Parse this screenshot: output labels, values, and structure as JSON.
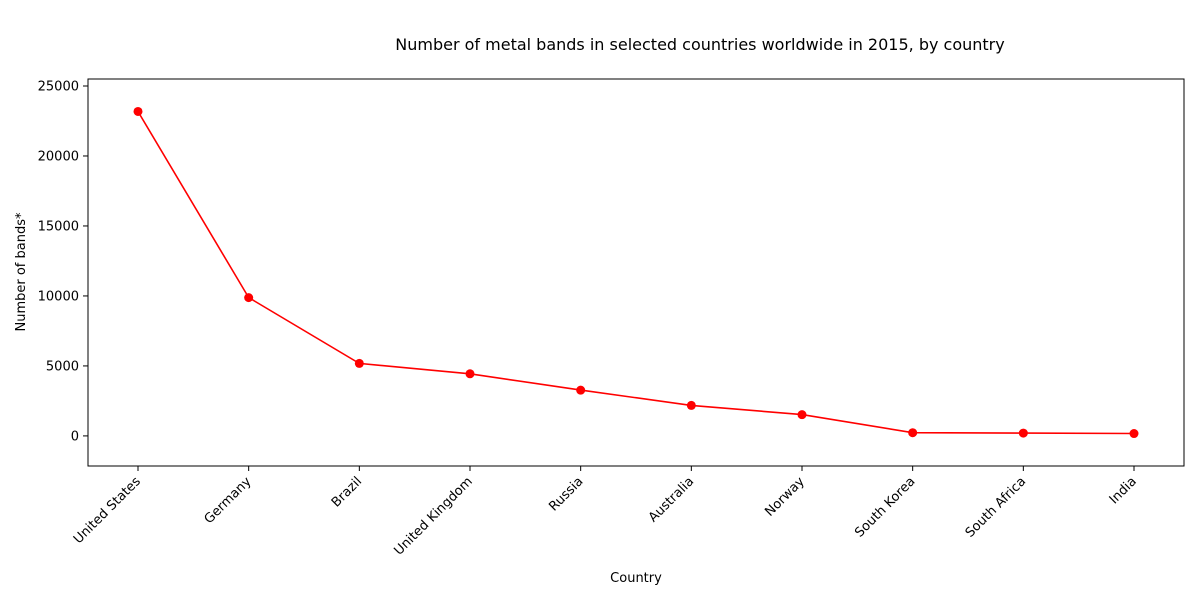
{
  "chart_data": {
    "type": "line",
    "title": "Number of metal bands in selected countries worldwide in 2015, by country",
    "xlabel": "Country",
    "ylabel": "Number of bands*",
    "categories": [
      "United States",
      "Germany",
      "Brazil",
      "United Kingdom",
      "Russia",
      "Australia",
      "Norway",
      "South Korea",
      "South Africa",
      "India"
    ],
    "series": [
      {
        "values": [
          23180,
          9880,
          5180,
          4440,
          3270,
          2180,
          1520,
          230,
          200,
          170
        ]
      }
    ],
    "ylim": [
      -2150,
      25500
    ],
    "yticks": [
      0,
      5000,
      10000,
      15000,
      20000,
      25000
    ],
    "line_color": "#ff0000",
    "marker_color": "#ff0000",
    "grid": false,
    "legend": "none"
  }
}
